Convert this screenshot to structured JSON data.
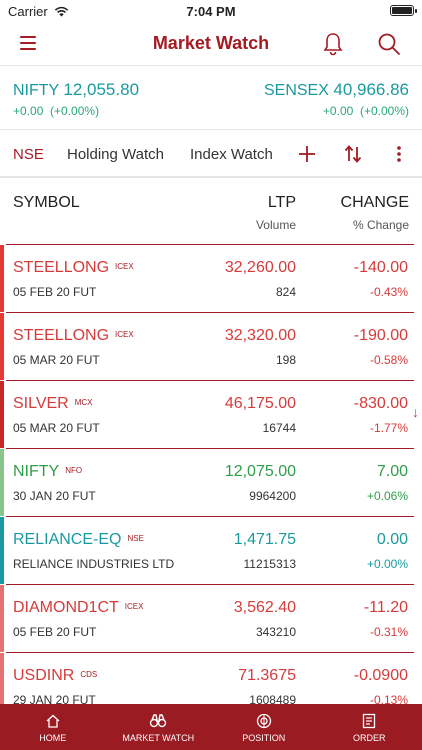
{
  "status": {
    "carrier": "Carrier",
    "time": "7:04 PM"
  },
  "nav": {
    "title": "Market Watch",
    "accent": "#a31c24"
  },
  "indices": {
    "nifty": {
      "name": "NIFTY",
      "value": "12,055.80",
      "change": "+0.00",
      "pct": "(+0.00%)"
    },
    "sensex": {
      "name": "SENSEX",
      "value": "40,966.86",
      "change": "+0.00",
      "pct": "(+0.00%)"
    }
  },
  "tabs": {
    "nse": "NSE",
    "holding": "Holding Watch",
    "index": "Index Watch"
  },
  "columns": {
    "symbol": "SYMBOL",
    "ltp": "LTP",
    "volume": "Volume",
    "change": "CHANGE",
    "pct_change": "% Change"
  },
  "rows": [
    {
      "symbol": "STEELLONG",
      "exchange": "ICEX",
      "sub": "05 FEB 20 FUT",
      "ltp": "32,260.00",
      "volume": "824",
      "change": "-140.00",
      "pct": "-0.43%",
      "trend": "red",
      "bar": "#e53935"
    },
    {
      "symbol": "STEELLONG",
      "exchange": "ICEX",
      "sub": "05 MAR 20 FUT",
      "ltp": "32,320.00",
      "volume": "198",
      "change": "-190.00",
      "pct": "-0.58%",
      "trend": "red",
      "bar": "#e53935"
    },
    {
      "symbol": "SILVER",
      "exchange": "MCX",
      "sub": "05 MAR 20 FUT",
      "ltp": "46,175.00",
      "volume": "16744",
      "change": "-830.00",
      "pct": "-1.77%",
      "trend": "red",
      "bar": "#c62828"
    },
    {
      "symbol": "NIFTY",
      "exchange": "NFO",
      "sub": "30 JAN 20 FUT",
      "ltp": "12,075.00",
      "volume": "9964200",
      "change": "7.00",
      "pct": "+0.06%",
      "trend": "green",
      "bar": "#8bc48a"
    },
    {
      "symbol": "RELIANCE-EQ",
      "exchange": "NSE",
      "sub": "RELIANCE INDUSTRIES LTD",
      "ltp": "1,471.75",
      "volume": "11215313",
      "change": "0.00",
      "pct": "+0.00%",
      "trend": "teal",
      "bar": "#1a9aa0"
    },
    {
      "symbol": "DIAMOND1CT",
      "exchange": "ICEX",
      "sub": "05 FEB 20 FUT",
      "ltp": "3,562.40",
      "volume": "343210",
      "change": "-11.20",
      "pct": "-0.31%",
      "trend": "red",
      "bar": "#e57373"
    },
    {
      "symbol": "USDINR",
      "exchange": "CDS",
      "sub": "29 JAN 20 FUT",
      "ltp": "71.3675",
      "volume": "1608489",
      "change": "-0.0900",
      "pct": "-0.13%",
      "trend": "red",
      "bar": "#e57373"
    }
  ],
  "footer": {
    "home": "HOME",
    "market_watch": "MARKET WATCH",
    "position": "POSITION",
    "order": "ORDER"
  }
}
